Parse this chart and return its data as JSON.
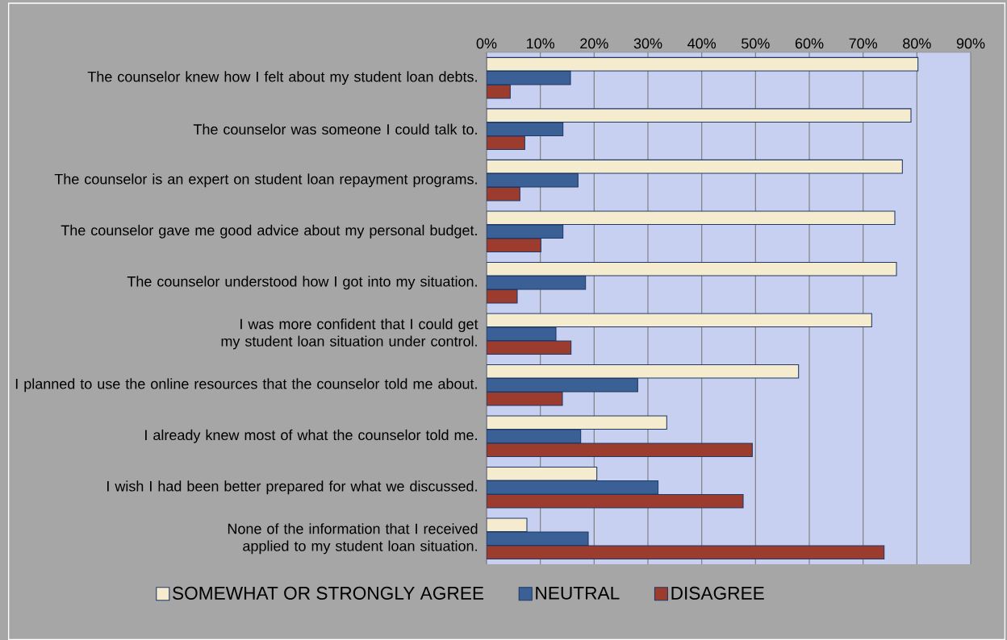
{
  "chart_data": {
    "type": "bar",
    "orientation": "horizontal",
    "categories": [
      "The counselor knew how I felt about my student loan debts.",
      "The counselor was someone I could talk to.",
      "The counselor is an expert on student loan repayment programs.",
      "The counselor gave me good advice about my personal budget.",
      "The counselor understood how I got into my situation.",
      "I was more confident that I could get my student loan situation under control.",
      "I planned to use the online resources that the counselor told me about.",
      "I already knew most of what the counselor told me.",
      "I wish I had been better prepared for what we discussed.",
      "None of the information that I received applied to my student loan situation."
    ],
    "series": [
      {
        "name": "SOMEWHAT OR STRONGLY AGREE",
        "color": "#f5ebcf",
        "values": [
          80.2,
          78.9,
          77.3,
          75.9,
          76.2,
          71.6,
          58.0,
          33.5,
          20.5,
          7.5
        ]
      },
      {
        "name": "NEUTRAL",
        "color": "#3a6096",
        "values": [
          15.6,
          14.2,
          17.0,
          14.2,
          18.4,
          12.9,
          28.1,
          17.5,
          31.9,
          18.9
        ]
      },
      {
        "name": "DISAGREE",
        "color": "#9b3c2f",
        "values": [
          4.4,
          7.1,
          6.2,
          10.1,
          5.7,
          15.7,
          14.1,
          49.4,
          47.7,
          73.9
        ]
      }
    ],
    "xlim": [
      0,
      90
    ],
    "xticks": [
      {
        "value": 0,
        "label": "0%"
      },
      {
        "value": 10,
        "label": "10%"
      },
      {
        "value": 20,
        "label": "20%"
      },
      {
        "value": 30,
        "label": "30%"
      },
      {
        "value": 40,
        "label": "40%"
      },
      {
        "value": 50,
        "label": "50%"
      },
      {
        "value": 60,
        "label": "60%"
      },
      {
        "value": 70,
        "label": "70%"
      },
      {
        "value": 80,
        "label": "80%"
      },
      {
        "value": 90,
        "label": "90%"
      }
    ],
    "grid": "x",
    "legend": "bottom"
  }
}
